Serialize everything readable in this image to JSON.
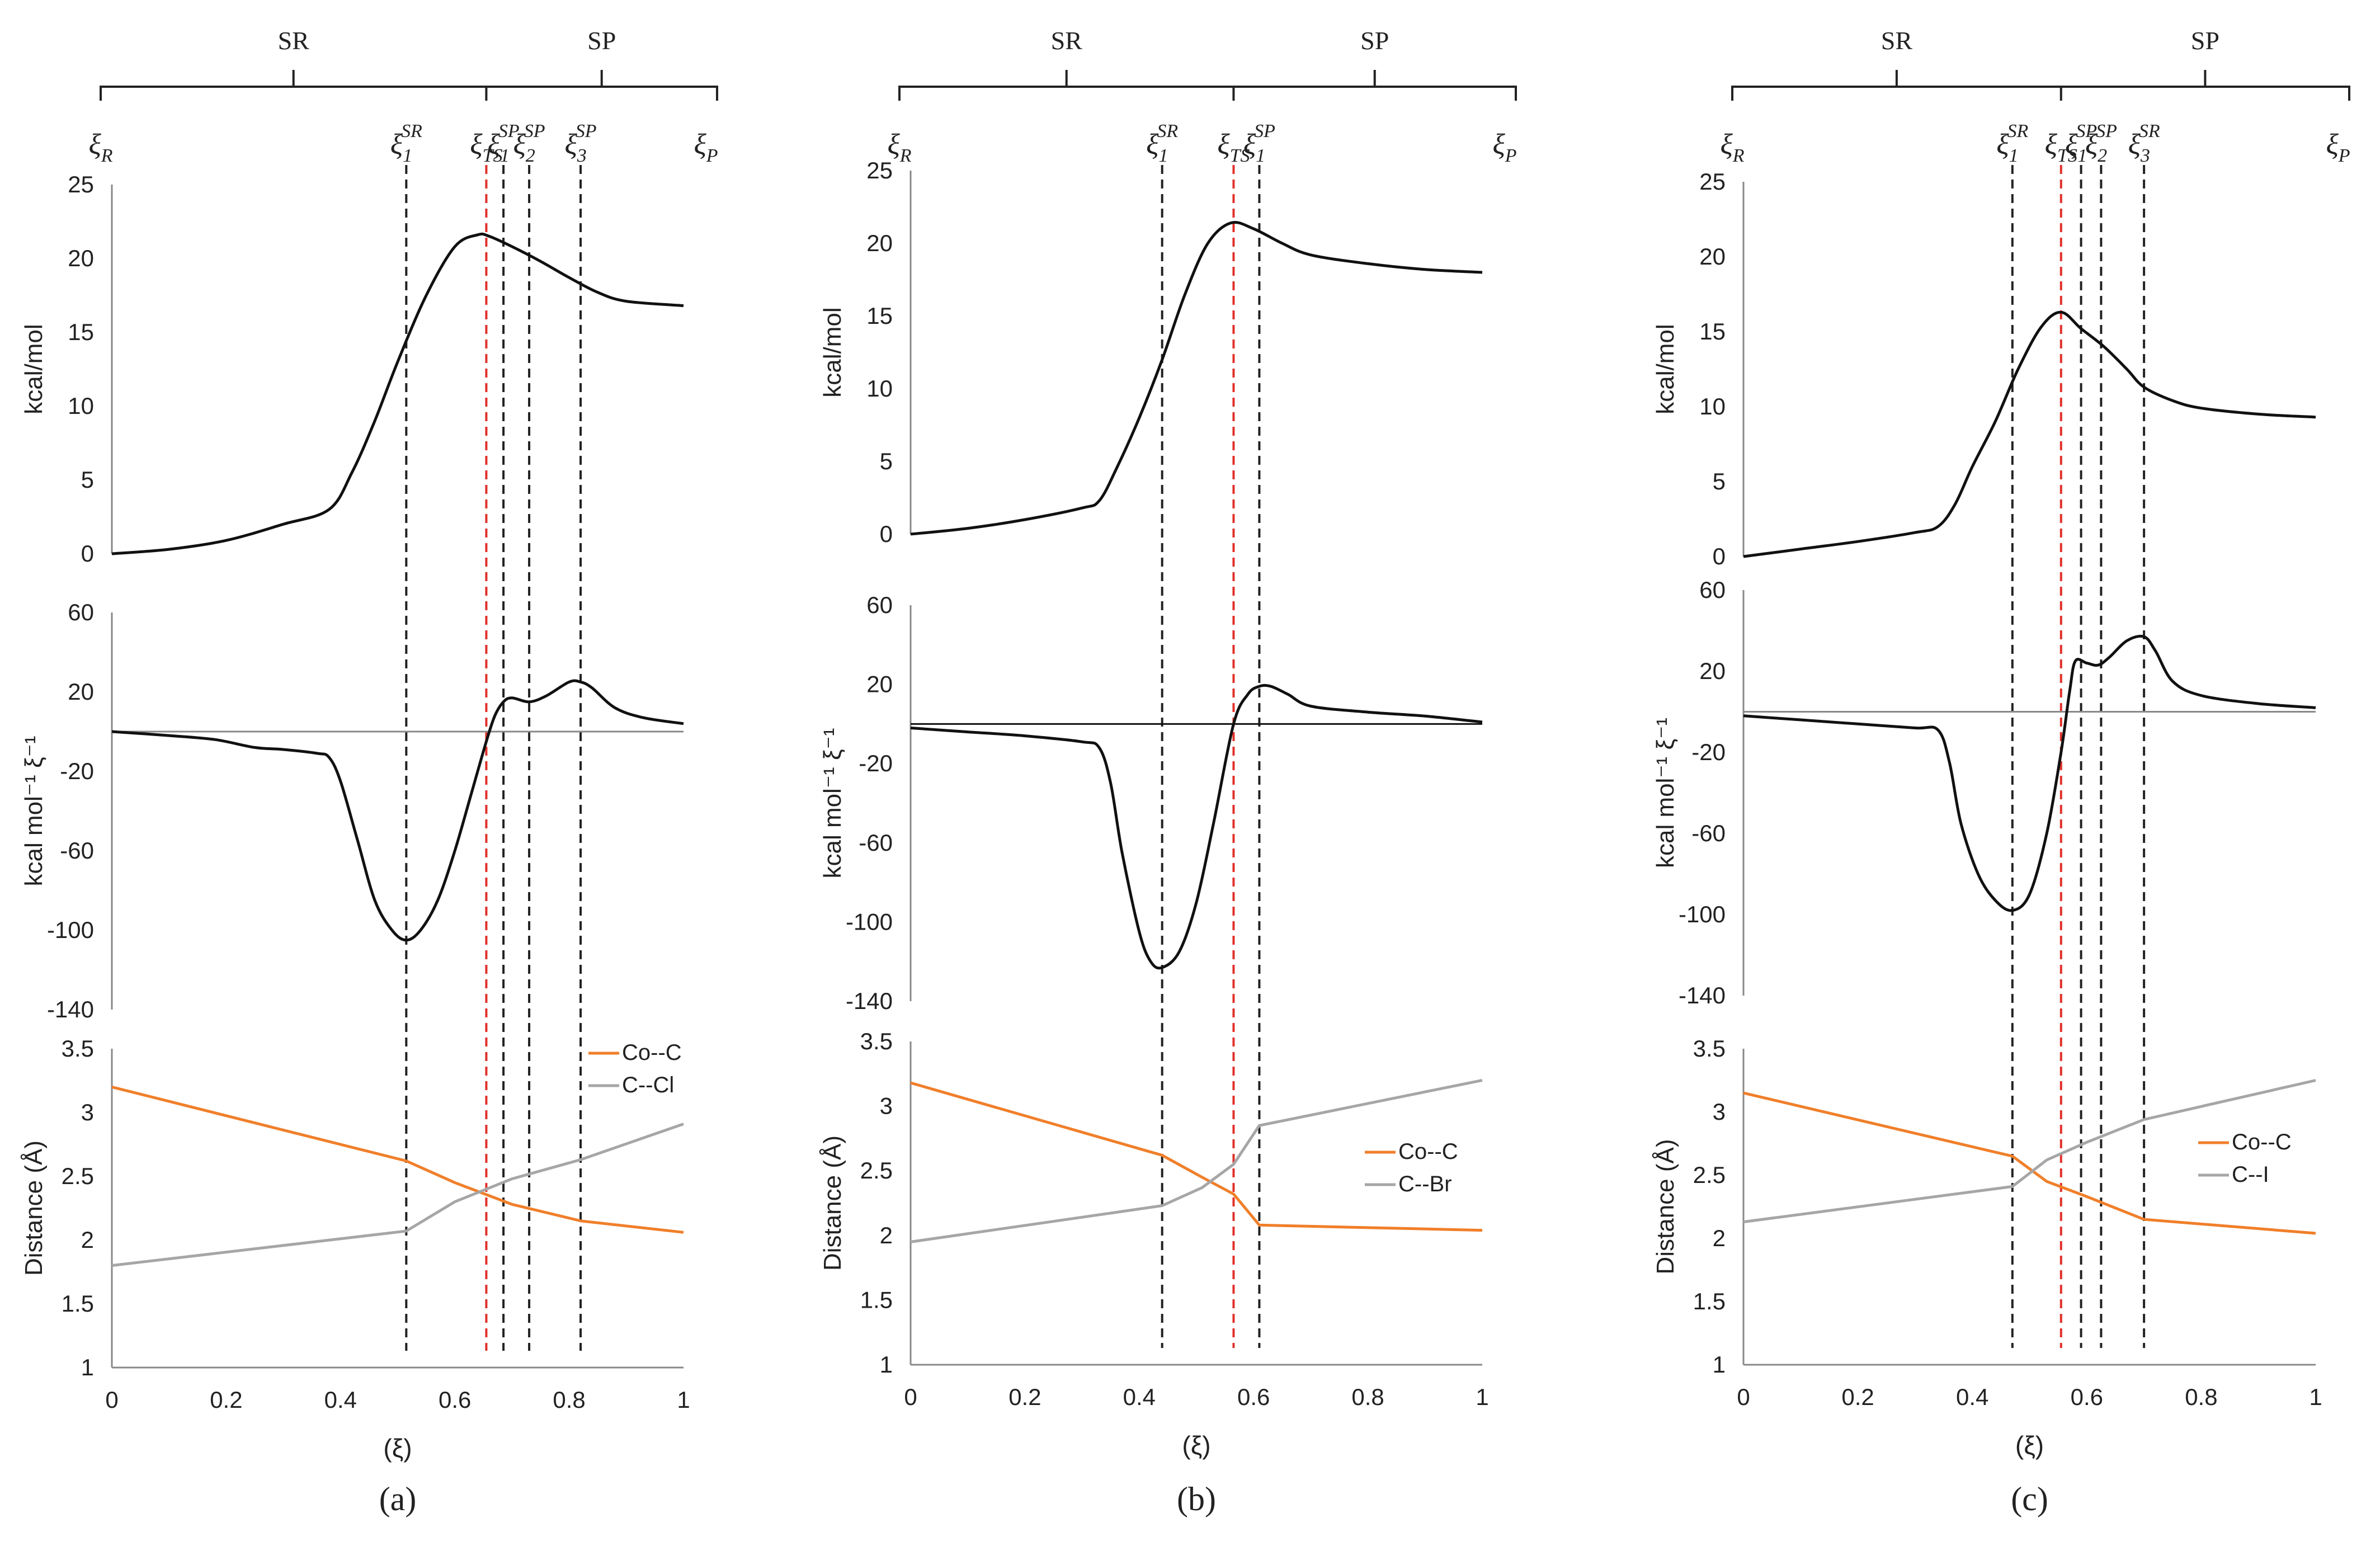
{
  "figure": {
    "panels": [
      {
        "label": "(a)",
        "brace_left": "SR",
        "brace_right": "SP",
        "markers": [
          {
            "key": "R",
            "sym": "ξ",
            "sub": "R",
            "sup": "",
            "xi": 0,
            "line": false
          },
          {
            "key": "SR1",
            "sym": "ξ",
            "sub": "1",
            "sup": "SR",
            "xi": 0.515,
            "line": true,
            "red": false
          },
          {
            "key": "TS",
            "sym": "ξ",
            "sub": "TS",
            "sup": "",
            "xi": 0.655,
            "line": true,
            "red": true
          },
          {
            "key": "SP1",
            "sym": "ξ",
            "sub": "1",
            "sup": "SP",
            "xi": 0.685,
            "line": true,
            "red": false
          },
          {
            "key": "SP2",
            "sym": "ξ",
            "sub": "2",
            "sup": "SP",
            "xi": 0.73,
            "line": true,
            "red": false
          },
          {
            "key": "SP3",
            "sym": "ξ",
            "sub": "3",
            "sup": "SP",
            "xi": 0.82,
            "line": true,
            "red": false
          },
          {
            "key": "P",
            "sym": "ξ",
            "sub": "P",
            "sup": "",
            "xi": 1.0,
            "line": false
          }
        ],
        "energy": {
          "ylabel": "kcal/mol",
          "ylim": [
            0,
            25
          ],
          "ticks": [
            "0",
            "5",
            "10",
            "15",
            "20",
            "25"
          ],
          "x": [
            0,
            0.1,
            0.2,
            0.3,
            0.38,
            0.42,
            0.46,
            0.5,
            0.55,
            0.6,
            0.64,
            0.66,
            0.7,
            0.75,
            0.8,
            0.85,
            0.9,
            1.0
          ],
          "y": [
            0,
            0.3,
            0.9,
            2.0,
            3.0,
            5.5,
            9.0,
            13.0,
            17.5,
            20.8,
            21.6,
            21.5,
            20.8,
            19.8,
            18.7,
            17.7,
            17.1,
            16.8
          ]
        },
        "force": {
          "ylabel": "kcal mol⁻¹ ξ⁻¹",
          "ylim": [
            -140,
            60
          ],
          "ticks": [
            "60",
            "20",
            "-20",
            "-60",
            "-100",
            "-140"
          ],
          "x": [
            0,
            0.1,
            0.18,
            0.25,
            0.3,
            0.36,
            0.38,
            0.4,
            0.43,
            0.46,
            0.49,
            0.515,
            0.54,
            0.57,
            0.6,
            0.63,
            0.655,
            0.67,
            0.685,
            0.7,
            0.73,
            0.76,
            0.8,
            0.82,
            0.84,
            0.88,
            0.93,
            1.0
          ],
          "y": [
            0,
            -2,
            -4,
            -8,
            -9,
            -11,
            -13,
            -25,
            -55,
            -85,
            -100,
            -105,
            -100,
            -85,
            -60,
            -30,
            -5,
            8,
            15,
            17,
            15,
            18,
            25,
            25,
            22,
            12,
            7,
            4
          ]
        },
        "distance": {
          "ylabel": "Distance (Å)",
          "ylim": [
            1,
            3.5
          ],
          "ticks": [
            "1",
            "1.5",
            "2",
            "2.5",
            "3",
            "3.5"
          ],
          "series": [
            {
              "name": "Co--C",
              "color": "#f07f2a",
              "x": [
                0,
                0.515,
                0.6,
                0.7,
                0.82,
                1.0
              ],
              "y": [
                3.2,
                2.62,
                2.45,
                2.28,
                2.15,
                2.06
              ]
            },
            {
              "name": "C--Cl",
              "color": "#a6a6a6",
              "x": [
                0,
                0.515,
                0.6,
                0.7,
                0.82,
                1.0
              ],
              "y": [
                1.8,
                2.07,
                2.3,
                2.48,
                2.63,
                2.91
              ]
            }
          ]
        },
        "xticks": [
          "0",
          "0.2",
          "0.4",
          "0.6",
          "0.8",
          "1"
        ],
        "xlabel": "(ξ)"
      },
      {
        "label": "(b)",
        "brace_left": "SR",
        "brace_right": "SP",
        "markers": [
          {
            "key": "R",
            "sym": "ξ",
            "sub": "R",
            "sup": "",
            "xi": 0,
            "line": false
          },
          {
            "key": "SR1",
            "sym": "ξ",
            "sub": "1",
            "sup": "SR",
            "xi": 0.44,
            "line": true,
            "red": false
          },
          {
            "key": "TS",
            "sym": "ξ",
            "sub": "TS",
            "sup": "",
            "xi": 0.565,
            "line": true,
            "red": true
          },
          {
            "key": "SP1",
            "sym": "ξ",
            "sub": "1",
            "sup": "SP",
            "xi": 0.61,
            "line": true,
            "red": false
          },
          {
            "key": "P",
            "sym": "ξ",
            "sub": "P",
            "sup": "",
            "xi": 1.0,
            "line": false
          }
        ],
        "energy": {
          "ylabel": "kcal/mol",
          "ylim": [
            0,
            25
          ],
          "ticks": [
            "0",
            "5",
            "10",
            "15",
            "20",
            "25"
          ],
          "x": [
            0,
            0.1,
            0.2,
            0.3,
            0.33,
            0.36,
            0.4,
            0.44,
            0.48,
            0.52,
            0.56,
            0.6,
            0.65,
            0.7,
            0.8,
            0.9,
            1.0
          ],
          "y": [
            0,
            0.4,
            1.0,
            1.8,
            2.3,
            4.5,
            8.0,
            12.0,
            16.5,
            20.0,
            21.4,
            21.0,
            20.0,
            19.2,
            18.6,
            18.2,
            18.0
          ]
        },
        "force": {
          "ylabel": "kcal mol⁻¹ ξ⁻¹",
          "ylim": [
            -140,
            60
          ],
          "ticks": [
            "60",
            "20",
            "-20",
            "-60",
            "-100",
            "-140"
          ],
          "x": [
            0,
            0.1,
            0.2,
            0.3,
            0.33,
            0.35,
            0.37,
            0.4,
            0.42,
            0.44,
            0.47,
            0.5,
            0.53,
            0.565,
            0.59,
            0.61,
            0.63,
            0.66,
            0.7,
            0.8,
            0.9,
            1.0
          ],
          "y": [
            -2,
            -4,
            -6,
            -9,
            -12,
            -30,
            -65,
            -105,
            -120,
            -123,
            -115,
            -90,
            -50,
            0,
            15,
            19,
            19,
            15,
            9,
            6,
            4,
            1
          ]
        },
        "distance": {
          "ylabel": "Distance (Å)",
          "ylim": [
            1,
            3.5
          ],
          "ticks": [
            "1",
            "1.5",
            "2",
            "2.5",
            "3",
            "3.5"
          ],
          "series": [
            {
              "name": "Co--C",
              "color": "#f07f2a",
              "x": [
                0,
                0.44,
                0.51,
                0.565,
                0.61,
                1.0
              ],
              "y": [
                3.18,
                2.62,
                2.45,
                2.32,
                2.08,
                2.04
              ]
            },
            {
              "name": "C--Br",
              "color": "#a6a6a6",
              "x": [
                0,
                0.44,
                0.51,
                0.565,
                0.61,
                1.0
              ],
              "y": [
                1.95,
                2.23,
                2.37,
                2.55,
                2.85,
                3.2
              ]
            }
          ]
        },
        "xticks": [
          "0",
          "0.2",
          "0.4",
          "0.6",
          "0.8",
          "1"
        ],
        "xlabel": "(ξ)"
      },
      {
        "label": "(c)",
        "brace_left": "SR",
        "brace_right": "SP",
        "markers": [
          {
            "key": "R",
            "sym": "ξ",
            "sub": "R",
            "sup": "",
            "xi": 0,
            "line": false
          },
          {
            "key": "SR1",
            "sym": "ξ",
            "sub": "1",
            "sup": "SR",
            "xi": 0.47,
            "line": true,
            "red": false
          },
          {
            "key": "TS",
            "sym": "ξ",
            "sub": "TS",
            "sup": "",
            "xi": 0.555,
            "line": true,
            "red": true
          },
          {
            "key": "SP1",
            "sym": "ξ",
            "sub": "1",
            "sup": "SP",
            "xi": 0.59,
            "line": true,
            "red": false
          },
          {
            "key": "SP2",
            "sym": "ξ",
            "sub": "2",
            "sup": "SP",
            "xi": 0.625,
            "line": true,
            "red": false
          },
          {
            "key": "SR3",
            "sym": "ξ",
            "sub": "3",
            "sup": "SR",
            "xi": 0.7,
            "line": true,
            "red": false
          },
          {
            "key": "P",
            "sym": "ξ",
            "sub": "P",
            "sup": "",
            "xi": 1.0,
            "line": false
          }
        ],
        "energy": {
          "ylabel": "kcal/mol",
          "ylim": [
            0,
            25
          ],
          "ticks": [
            "0",
            "5",
            "10",
            "15",
            "20",
            "25"
          ],
          "x": [
            0,
            0.1,
            0.2,
            0.3,
            0.34,
            0.37,
            0.4,
            0.44,
            0.48,
            0.52,
            0.555,
            0.59,
            0.63,
            0.67,
            0.7,
            0.75,
            0.8,
            0.9,
            1.0
          ],
          "y": [
            0,
            0.5,
            1.0,
            1.6,
            2.0,
            3.5,
            6.0,
            9.0,
            12.5,
            15.3,
            16.3,
            15.2,
            14.0,
            12.5,
            11.3,
            10.4,
            9.9,
            9.5,
            9.3
          ]
        },
        "force": {
          "ylabel": "kcal mol⁻¹ ξ⁻¹",
          "ylim": [
            -140,
            60
          ],
          "ticks": [
            "60",
            "20",
            "-20",
            "-60",
            "-100",
            "-140"
          ],
          "x": [
            0,
            0.1,
            0.2,
            0.3,
            0.34,
            0.36,
            0.38,
            0.41,
            0.44,
            0.47,
            0.5,
            0.53,
            0.555,
            0.57,
            0.58,
            0.6,
            0.62,
            0.64,
            0.67,
            0.7,
            0.72,
            0.75,
            0.8,
            0.9,
            1.0
          ],
          "y": [
            -2,
            -4,
            -6,
            -8,
            -9,
            -25,
            -55,
            -80,
            -93,
            -98,
            -90,
            -60,
            -20,
            10,
            25,
            24,
            23,
            27,
            35,
            37,
            30,
            15,
            8,
            4,
            2
          ]
        },
        "distance": {
          "ylabel": "Distance (Å)",
          "ylim": [
            1,
            3.5
          ],
          "ticks": [
            "1",
            "1.5",
            "2",
            "2.5",
            "3",
            "3.5"
          ],
          "series": [
            {
              "name": "Co--C",
              "color": "#f07f2a",
              "x": [
                0,
                0.47,
                0.53,
                0.6,
                0.7,
                1.0
              ],
              "y": [
                3.15,
                2.65,
                2.45,
                2.33,
                2.15,
                2.04
              ]
            },
            {
              "name": "C--I",
              "color": "#a6a6a6",
              "x": [
                0,
                0.47,
                0.53,
                0.6,
                0.7,
                1.0
              ],
              "y": [
                2.13,
                2.41,
                2.62,
                2.76,
                2.94,
                3.25
              ]
            }
          ]
        },
        "xticks": [
          "0",
          "0.2",
          "0.4",
          "0.6",
          "0.8",
          "1"
        ],
        "xlabel": "(ξ)"
      }
    ]
  },
  "chart_data": [
    {
      "type": "line",
      "panel": "(a)",
      "subplots": [
        "energy",
        "force",
        "distance"
      ],
      "xlabel": "(ξ)",
      "xlim": [
        0,
        1
      ],
      "series": [
        {
          "name": "Energy (kcal/mol)"
        },
        {
          "name": "Force (kcal mol⁻¹ ξ⁻¹)"
        },
        {
          "name": "Co--C"
        },
        {
          "name": "C--Cl"
        }
      ]
    },
    {
      "type": "line",
      "panel": "(b)",
      "subplots": [
        "energy",
        "force",
        "distance"
      ],
      "xlabel": "(ξ)",
      "xlim": [
        0,
        1
      ],
      "series": [
        {
          "name": "Energy (kcal/mol)"
        },
        {
          "name": "Force (kcal mol⁻¹ ξ⁻¹)"
        },
        {
          "name": "Co--C"
        },
        {
          "name": "C--Br"
        }
      ]
    },
    {
      "type": "line",
      "panel": "(c)",
      "subplots": [
        "energy",
        "force",
        "distance"
      ],
      "xlabel": "(ξ)",
      "xlim": [
        0,
        1
      ],
      "series": [
        {
          "name": "Energy (kcal/mol)"
        },
        {
          "name": "Force (kcal mol⁻¹ ξ⁻¹)"
        },
        {
          "name": "Co--C"
        },
        {
          "name": "C--I"
        }
      ]
    }
  ]
}
